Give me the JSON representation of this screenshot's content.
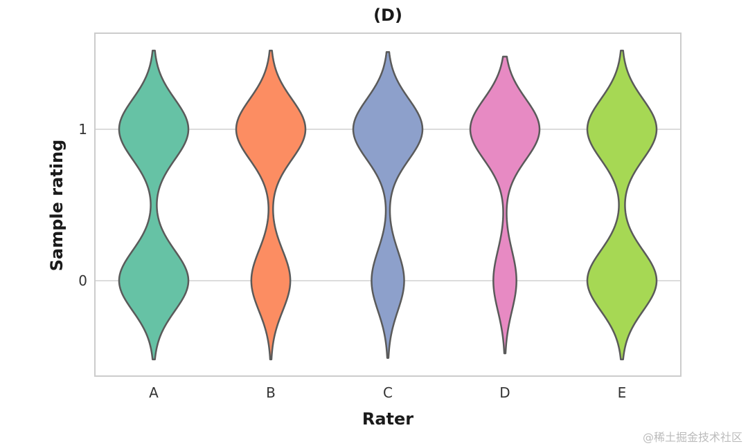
{
  "chart_data": {
    "type": "violin",
    "title": "(D)",
    "xlabel": "Rater",
    "ylabel": "Sample rating",
    "categories": [
      "A",
      "B",
      "C",
      "D",
      "E"
    ],
    "yticks": [
      "0",
      "1"
    ],
    "ylim": [
      -0.6,
      1.6
    ],
    "grid": true,
    "series": [
      {
        "name": "A",
        "color": "#66c2a5",
        "min": -0.52,
        "max": 1.52,
        "density": [
          0.5,
          0.5
        ]
      },
      {
        "name": "B",
        "color": "#fc8d62",
        "min": -0.52,
        "max": 1.52,
        "density": [
          0.36,
          0.64
        ]
      },
      {
        "name": "C",
        "color": "#8da0cb",
        "min": -0.51,
        "max": 1.51,
        "density": [
          0.32,
          0.68
        ]
      },
      {
        "name": "D",
        "color": "#e78ac3",
        "min": -0.48,
        "max": 1.48,
        "density": [
          0.25,
          0.75
        ]
      },
      {
        "name": "E",
        "color": "#a6d854",
        "min": -0.52,
        "max": 1.52,
        "density": [
          0.5,
          0.5
        ]
      }
    ]
  },
  "watermark": "@稀土掘金技术社区"
}
